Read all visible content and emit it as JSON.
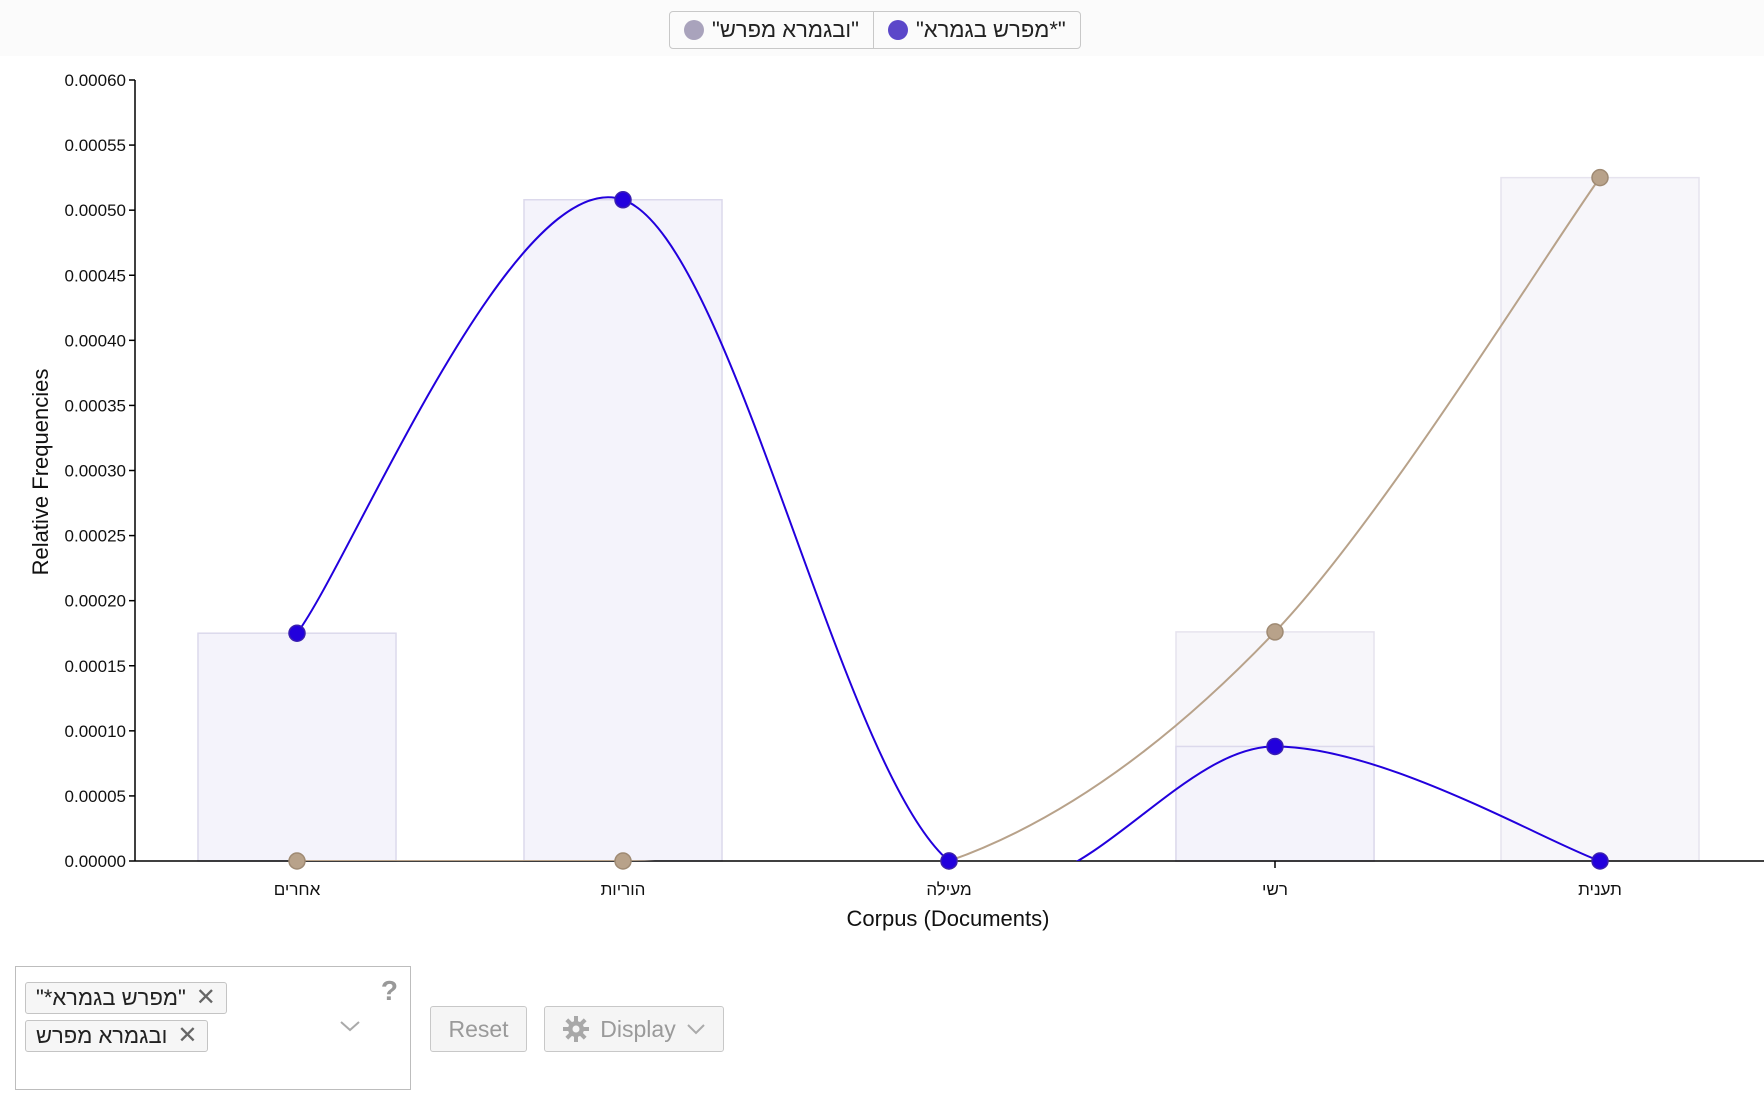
{
  "legend": [
    {
      "label": "\"ובגמרא מפרש\"",
      "color": "#a9a3bc"
    },
    {
      "label": "\"מפרש בגמרא*\"",
      "color": "#5b47c9"
    }
  ],
  "chart_data": {
    "type": "line",
    "xlabel": "Corpus (Documents)",
    "ylabel": "Relative Frequencies",
    "categories": [
      "אחרים",
      "הוריות",
      "מעילה",
      "רשי",
      "תענית"
    ],
    "ylim": [
      0,
      0.0006
    ],
    "y_ticks": [
      "0.00000",
      "0.00005",
      "0.00010",
      "0.00015",
      "0.00020",
      "0.00025",
      "0.00030",
      "0.00035",
      "0.00040",
      "0.00045",
      "0.00050",
      "0.00055",
      "0.00060"
    ],
    "series": [
      {
        "name": "\"מפרש בגמרא*\"",
        "color": "#2200dd",
        "values": [
          0.000175,
          0.000508,
          0.0,
          8.8e-05,
          0.0
        ]
      },
      {
        "name": "\"ובגמרא מפרש\"",
        "color": "#b8a28a",
        "values": [
          0.0,
          0.0,
          0.0,
          0.000176,
          0.000525
        ]
      }
    ],
    "grid": false,
    "legend_position": "top-center"
  },
  "controls": {
    "chips": [
      {
        "label": "\"מפרש בגמרא*\""
      },
      {
        "label": "ובגמרא מפרש"
      }
    ],
    "help_label": "?",
    "reset_label": "Reset",
    "display_label": "Display"
  }
}
